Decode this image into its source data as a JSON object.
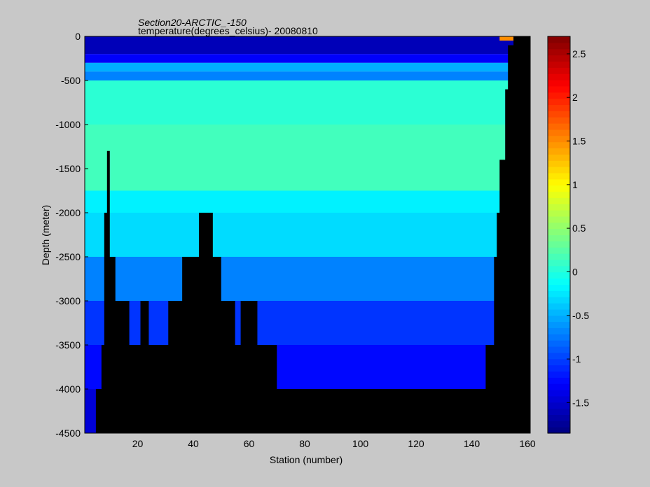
{
  "chart_data": {
    "type": "heatmap",
    "title": "Section20-ARCTIC_-150",
    "subtitle": "temperature(degrees_celsius)- 20080810",
    "xlabel": "Station (number)",
    "ylabel": "Depth (meter)",
    "xlim": [
      1,
      161
    ],
    "ylim": [
      -4500,
      0
    ],
    "xticks": [
      20,
      40,
      60,
      80,
      100,
      120,
      140,
      160
    ],
    "yticks": [
      0,
      -500,
      -1000,
      -1500,
      -2000,
      -2500,
      -3000,
      -3500,
      -4000,
      -4500
    ],
    "colorbar": {
      "range": [
        -1.85,
        2.7
      ],
      "ticks": [
        -1.5,
        -1,
        -0.5,
        0,
        0.5,
        1,
        1.5,
        2,
        2.5
      ]
    },
    "depth_layers": [
      {
        "top": 0,
        "bottom": -200,
        "temperature": -1.6
      },
      {
        "top": -200,
        "bottom": -300,
        "temperature": -1.3
      },
      {
        "top": -300,
        "bottom": -400,
        "temperature": -0.5
      },
      {
        "top": -400,
        "bottom": -500,
        "temperature": -0.7
      },
      {
        "top": -500,
        "bottom": -1000,
        "temperature": 0.05
      },
      {
        "top": -1000,
        "bottom": -1750,
        "temperature": 0.15
      },
      {
        "top": -1750,
        "bottom": -2000,
        "temperature": -0.2
      },
      {
        "top": -2000,
        "bottom": -2500,
        "temperature": -0.3
      },
      {
        "top": -2500,
        "bottom": -3000,
        "temperature": -0.7
      },
      {
        "top": -3000,
        "bottom": -3500,
        "temperature": -1.05
      },
      {
        "top": -3500,
        "bottom": -4000,
        "temperature": -1.25
      },
      {
        "top": -4000,
        "bottom": -4500,
        "temperature": -1.45
      }
    ],
    "seafloor": [
      {
        "station": 1,
        "depth": -4500
      },
      {
        "station": 5,
        "depth": -4000
      },
      {
        "station": 7,
        "depth": -3500
      },
      {
        "station": 8,
        "depth": -2000
      },
      {
        "station": 9,
        "depth": -1300
      },
      {
        "station": 10,
        "depth": -2500
      },
      {
        "station": 12,
        "depth": -3000
      },
      {
        "station": 17,
        "depth": -3500
      },
      {
        "station": 21,
        "depth": -3000
      },
      {
        "station": 24,
        "depth": -3500
      },
      {
        "station": 31,
        "depth": -3000
      },
      {
        "station": 36,
        "depth": -2500
      },
      {
        "station": 42,
        "depth": -2000
      },
      {
        "station": 47,
        "depth": -2500
      },
      {
        "station": 50,
        "depth": -3000
      },
      {
        "station": 55,
        "depth": -3500
      },
      {
        "station": 57,
        "depth": -3000
      },
      {
        "station": 63,
        "depth": -3500
      },
      {
        "station": 70,
        "depth": -4000
      },
      {
        "station": 145,
        "depth": -3500
      },
      {
        "station": 148,
        "depth": -2500
      },
      {
        "station": 149,
        "depth": -2000
      },
      {
        "station": 150,
        "depth": -1400
      },
      {
        "station": 152,
        "depth": -600
      },
      {
        "station": 153,
        "depth": -100
      },
      {
        "station": 155,
        "depth": 0
      },
      {
        "station": 161,
        "depth": 0
      }
    ],
    "surface_warm_region": {
      "station_start": 150,
      "station_end": 155,
      "temperature": 1.5
    }
  }
}
